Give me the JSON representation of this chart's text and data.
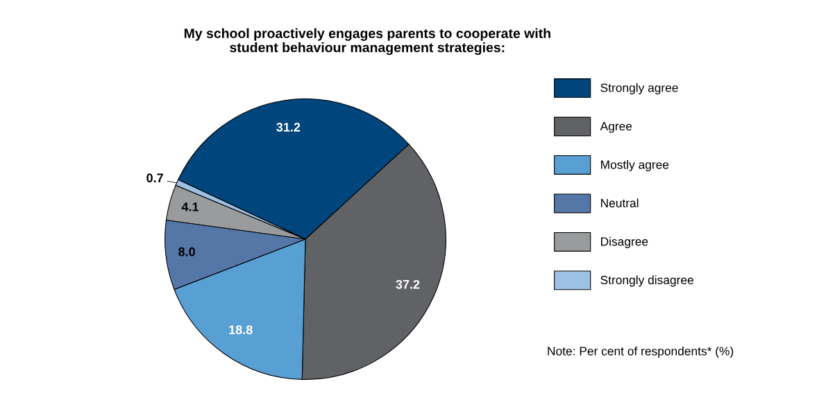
{
  "chart_data": {
    "type": "pie",
    "title": "My school proactively engages parents to cooperate with\nstudent behaviour management strategies:",
    "categories": [
      "Strongly agree",
      "Agree",
      "Mostly agree",
      "Neutral",
      "Disagree",
      "Strongly disagree"
    ],
    "values": [
      31.2,
      37.2,
      18.8,
      8.0,
      4.1,
      0.7
    ],
    "colors": [
      "#00457c",
      "#616265",
      "#58a0d4",
      "#5577a8",
      "#9a9b9d",
      "#9dc1e5"
    ],
    "value_labels": [
      "31.2",
      "37.2",
      "18.8",
      "8.0",
      "4.1",
      "0.7"
    ],
    "legend": "right",
    "annotations": [
      "Note: Per cent of respondents* (%)"
    ]
  }
}
